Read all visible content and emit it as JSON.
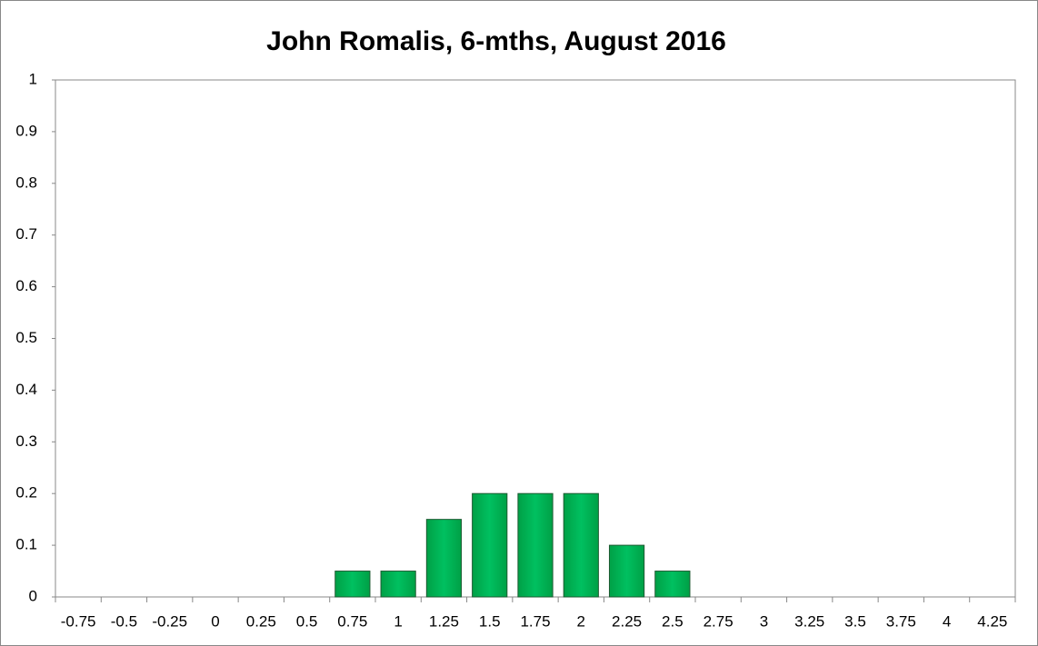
{
  "chart_data": {
    "type": "bar",
    "title": "John Romalis, 6-mths, August 2016",
    "categories": [
      "-0.75",
      "-0.5",
      "-0.25",
      "0",
      "0.25",
      "0.5",
      "0.75",
      "1",
      "1.25",
      "1.5",
      "1.75",
      "2",
      "2.25",
      "2.5",
      "2.75",
      "3",
      "3.25",
      "3.5",
      "3.75",
      "4",
      "4.25"
    ],
    "values": [
      0,
      0,
      0,
      0,
      0,
      0,
      0.05,
      0.05,
      0.15,
      0.2,
      0.2,
      0.2,
      0.1,
      0.05,
      0,
      0,
      0,
      0,
      0,
      0,
      0
    ],
    "color": "#00b050",
    "ylim": [
      0,
      1
    ],
    "yticks": [
      0,
      0.1,
      0.2,
      0.3,
      0.4,
      0.5,
      0.6,
      0.7,
      0.8,
      0.9,
      1
    ],
    "grid": false
  }
}
